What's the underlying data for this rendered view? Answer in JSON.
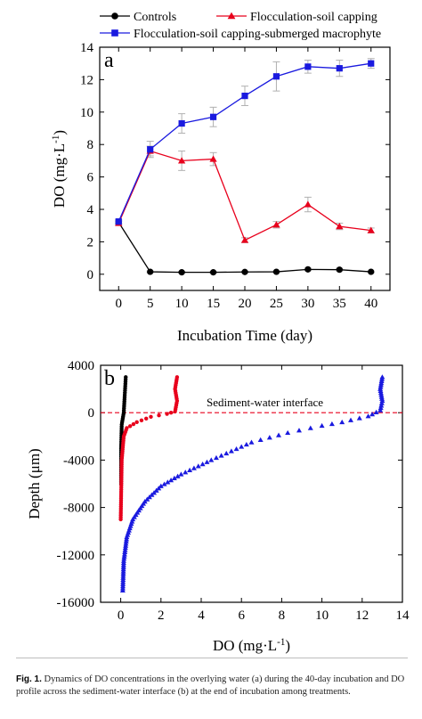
{
  "colors": {
    "controls": "#000000",
    "capping": "#e8001c",
    "macrophyte": "#1a1adf",
    "interface": "#e8001c",
    "errorbar": "#b0b0b0"
  },
  "chart_data": [
    {
      "panel": "a",
      "type": "line",
      "xlabel": "Incubation Time (day)",
      "ylabel": "DO (mg·L-1)",
      "xlim": [
        -3,
        43
      ],
      "ylim": [
        -1,
        14
      ],
      "xticks": [
        0,
        5,
        10,
        15,
        20,
        25,
        30,
        35,
        40
      ],
      "yticks": [
        0,
        2,
        4,
        6,
        8,
        10,
        12,
        14
      ],
      "grid": false,
      "legend": "top, outside plot",
      "x": [
        0,
        5,
        10,
        15,
        20,
        25,
        30,
        35,
        40
      ],
      "series": [
        {
          "name": "Controls",
          "marker": "circle",
          "color": "#000000",
          "values": [
            3.2,
            0.15,
            0.12,
            0.12,
            0.14,
            0.15,
            0.3,
            0.28,
            0.15
          ],
          "errors": [
            0.1,
            0.05,
            0.05,
            0.05,
            0.05,
            0.05,
            0.08,
            0.08,
            0.05
          ]
        },
        {
          "name": "Flocculation-soil capping",
          "marker": "triangle",
          "color": "#e8001c",
          "values": [
            3.15,
            7.6,
            7.0,
            7.1,
            2.1,
            3.05,
            4.3,
            2.95,
            2.7
          ],
          "errors": [
            0.1,
            0.3,
            0.6,
            0.4,
            0.15,
            0.2,
            0.45,
            0.2,
            0.15
          ]
        },
        {
          "name": "Flocculation-soil capping-submerged macrophyte",
          "marker": "square",
          "color": "#1a1adf",
          "values": [
            3.25,
            7.7,
            9.3,
            9.7,
            11.0,
            12.2,
            12.8,
            12.7,
            13.0
          ],
          "errors": [
            0.1,
            0.5,
            0.6,
            0.6,
            0.6,
            0.9,
            0.4,
            0.5,
            0.3
          ]
        }
      ]
    },
    {
      "panel": "b",
      "type": "scatter",
      "xlabel": "DO (mg·L-1)",
      "ylabel": "Depth (μm)",
      "xlim": [
        -1,
        14
      ],
      "ylim": [
        -16000,
        4000
      ],
      "xticks": [
        0,
        2,
        4,
        6,
        8,
        10,
        12,
        14
      ],
      "yticks": [
        4000,
        0,
        -4000,
        -8000,
        -12000,
        -16000
      ],
      "grid": false,
      "interface_label": "Sediment-water interface",
      "interface_depth": 0,
      "series": [
        {
          "name": "Controls",
          "marker": "circle",
          "color": "#000000",
          "profile": [
            [
              0.25,
              3000
            ],
            [
              0.2,
              1500
            ],
            [
              0.15,
              0
            ],
            [
              0.05,
              -1000
            ],
            [
              0.02,
              -3000
            ],
            [
              0.02,
              -6000
            ]
          ]
        },
        {
          "name": "Flocculation-soil capping",
          "marker": "circle",
          "color": "#e8001c",
          "profile": [
            [
              2.8,
              3000
            ],
            [
              2.7,
              2000
            ],
            [
              2.8,
              1000
            ],
            [
              2.7,
              100
            ],
            [
              2.3,
              -100
            ],
            [
              1.5,
              -350
            ],
            [
              0.8,
              -800
            ],
            [
              0.3,
              -1300
            ],
            [
              0.15,
              -2000
            ],
            [
              0.05,
              -4000
            ],
            [
              0.0,
              -9000
            ]
          ]
        },
        {
          "name": "Flocculation-soil capping-submerged macrophyte",
          "marker": "triangle",
          "color": "#1a1adf",
          "profile": [
            [
              13.0,
              3000
            ],
            [
              12.9,
              2000
            ],
            [
              13.0,
              1000
            ],
            [
              12.9,
              200
            ],
            [
              12.3,
              -300
            ],
            [
              11.0,
              -800
            ],
            [
              10.0,
              -1100
            ],
            [
              8.3,
              -1700
            ],
            [
              6.5,
              -2500
            ],
            [
              4.5,
              -4000
            ],
            [
              3.0,
              -5200
            ],
            [
              2.0,
              -6200
            ],
            [
              1.2,
              -7500
            ],
            [
              0.6,
              -9000
            ],
            [
              0.3,
              -10500
            ],
            [
              0.15,
              -12500
            ],
            [
              0.1,
              -15000
            ]
          ]
        }
      ]
    }
  ],
  "caption": {
    "label": "Fig. 1.",
    "text": "Dynamics of DO concentrations in the overlying water (a) during the 40-day incubation and DO profile across the sediment-water interface (b) at the end of incubation among treatments."
  }
}
